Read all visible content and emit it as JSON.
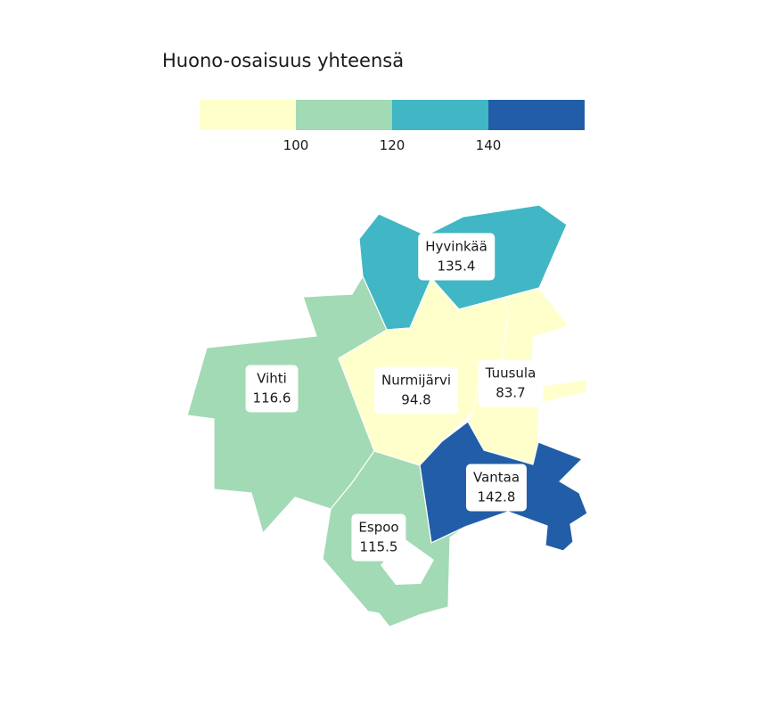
{
  "legend": {
    "title": "Huono-osaisuus yhteensä",
    "bins": [
      {
        "color": "#ffffcc"
      },
      {
        "color": "#a1dab4"
      },
      {
        "color": "#41b6c4"
      },
      {
        "color": "#225ea8"
      }
    ],
    "ticks": [
      "100",
      "120",
      "140"
    ]
  },
  "regions": [
    {
      "name": "Hyvinkää",
      "value": "135.4",
      "color": "#41b6c4"
    },
    {
      "name": "Vihti",
      "value": "116.6",
      "color": "#a1dab4"
    },
    {
      "name": "Nurmijärvi",
      "value": "94.8",
      "color": "#ffffcc"
    },
    {
      "name": "Tuusula",
      "value": "83.7",
      "color": "#ffffcc"
    },
    {
      "name": "Vantaa",
      "value": "142.8",
      "color": "#225ea8"
    },
    {
      "name": "Espoo",
      "value": "115.5",
      "color": "#a1dab4"
    }
  ]
}
